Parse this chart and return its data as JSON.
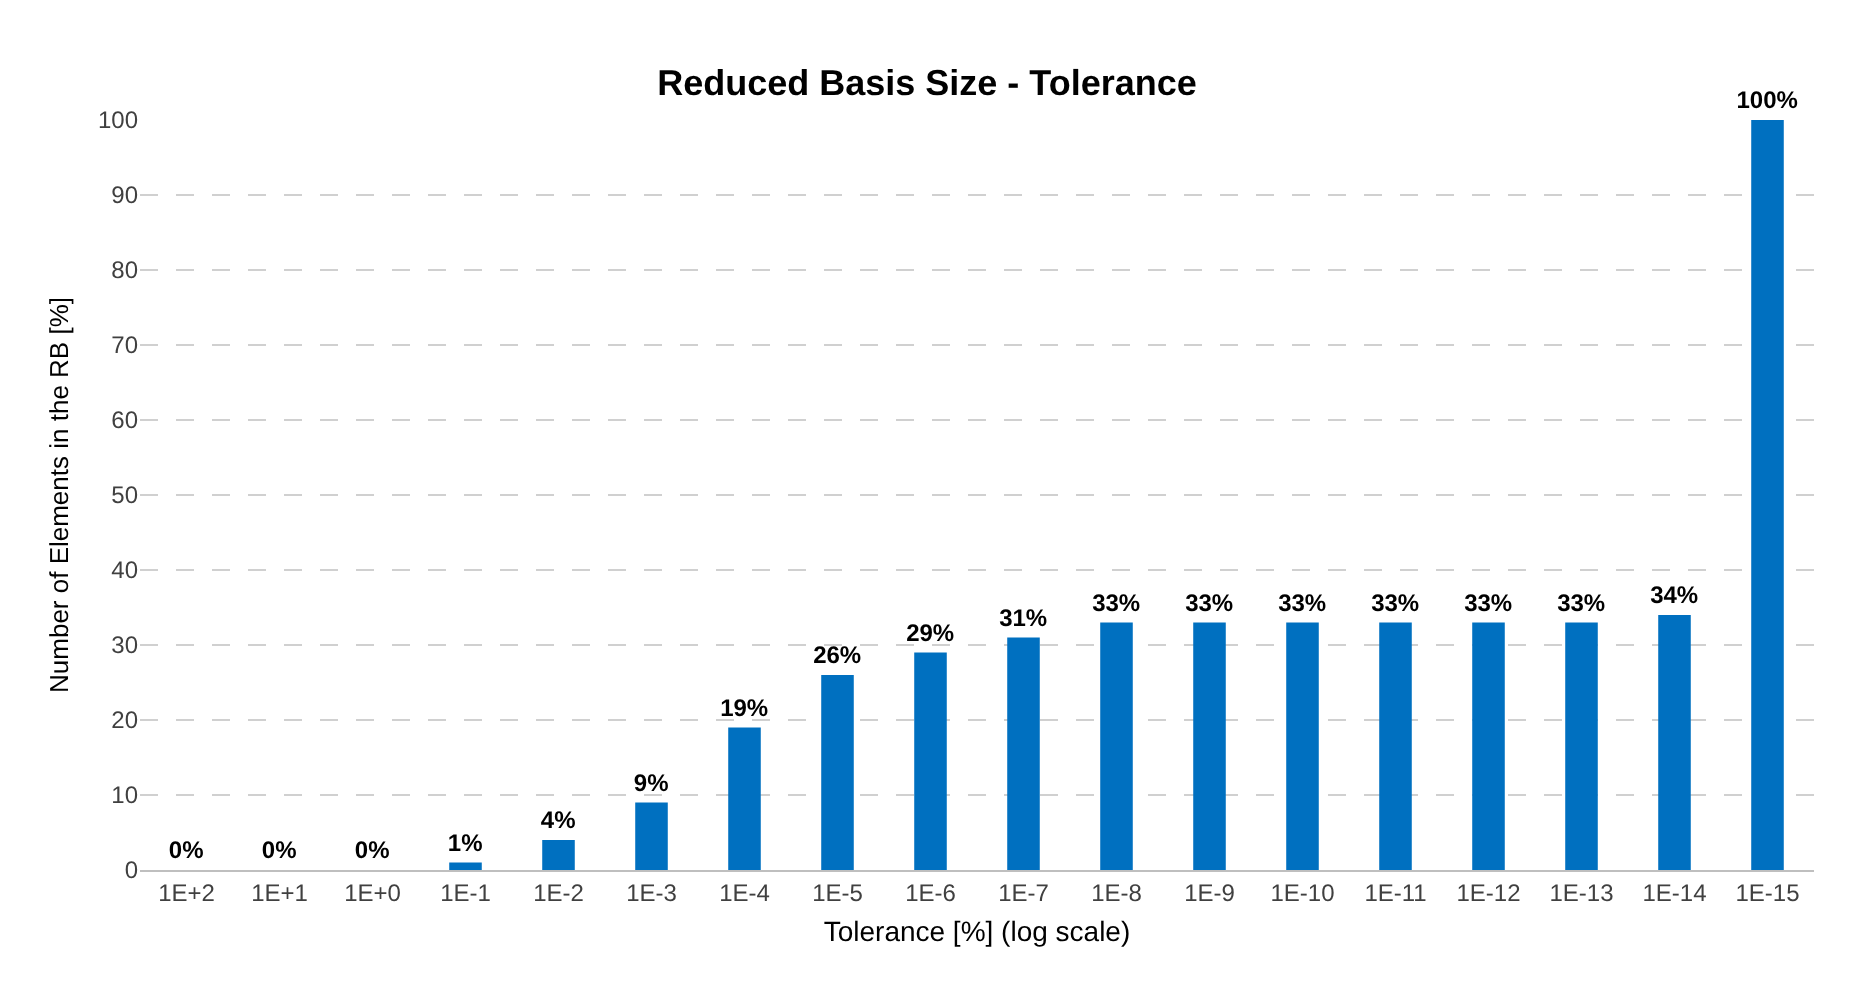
{
  "chart_data": {
    "type": "bar",
    "title": "Reduced Basis Size - Tolerance",
    "xlabel": "Tolerance [%] (log scale)",
    "ylabel": "Number of Elements in the RB [%]",
    "categories": [
      "1E+2",
      "1E+1",
      "1E+0",
      "1E-1",
      "1E-2",
      "1E-3",
      "1E-4",
      "1E-5",
      "1E-6",
      "1E-7",
      "1E-8",
      "1E-9",
      "1E-10",
      "1E-11",
      "1E-12",
      "1E-13",
      "1E-14",
      "1E-15"
    ],
    "values": [
      0,
      0,
      0,
      1,
      4,
      9,
      19,
      26,
      29,
      31,
      33,
      33,
      33,
      33,
      33,
      33,
      34,
      100
    ],
    "value_labels": [
      "0%",
      "0%",
      "0%",
      "1%",
      "4%",
      "9%",
      "19%",
      "26%",
      "29%",
      "31%",
      "33%",
      "33%",
      "33%",
      "33%",
      "33%",
      "33%",
      "34%",
      "100%"
    ],
    "color": "#0070c0",
    "ylim": [
      0,
      100
    ],
    "yticks": [
      0,
      10,
      20,
      30,
      40,
      50,
      60,
      70,
      80,
      90,
      100
    ],
    "grid": "y"
  }
}
